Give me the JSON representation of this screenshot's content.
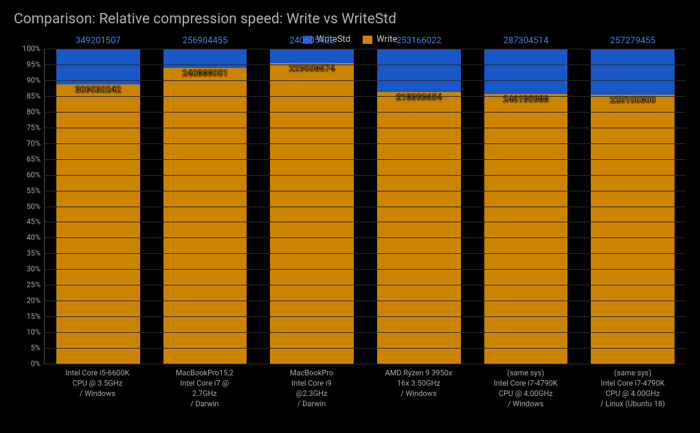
{
  "chart": {
    "type": "stacked-bar-percent",
    "title": "Comparison: Relative compression speed: Write vs WriteStd",
    "background_color": "#000000",
    "grid_color": "#2a2a2a",
    "axis_color": "#555555",
    "title_color": "#b0b0b0",
    "label_color": "#aaaaaa",
    "title_fontsize": 21,
    "label_fontsize": 11,
    "value_fontsize": 13,
    "ylim": [
      0,
      100
    ],
    "ytick_step": 5,
    "bar_width": 0.78,
    "legend": {
      "position": "top-center",
      "items": [
        {
          "label": "WriteStd",
          "color": "#1857c6"
        },
        {
          "label": "Write",
          "color": "#cc8400"
        }
      ]
    },
    "series": {
      "WriteStd": {
        "color": "#1857c6",
        "value_text_color": "#4a80e8"
      },
      "Write": {
        "color": "#cc8400",
        "value_text_color": "#e69a1f"
      }
    },
    "categories": [
      {
        "label": "Intel Core i5-6600K\nCPU @ 3.5GHz\n/ Windows",
        "WriteStd": 349201507,
        "Write": 309530242,
        "write_pct": 88.6
      },
      {
        "label": "MacBookPro15,2\nIntel Core i7 @\n2.7GHz\n/ Darwin",
        "WriteStd": 256904455,
        "Write": 240888051,
        "write_pct": 93.8
      },
      {
        "label": "MacBookPro\nIntel Core i9\n@2.3GHz\n/ Darwin",
        "WriteStd": 240605422,
        "Write": 229558674,
        "write_pct": 95.4
      },
      {
        "label": "AMD Ryzen 9 3950x\n16x 3.50GHz\n/ Windows",
        "WriteStd": 253166022,
        "Write": 218393654,
        "write_pct": 86.3
      },
      {
        "label": "(same sys)\nIntel Core i7-4790K\nCPU @ 4.00GHz\n/ Windows",
        "WriteStd": 287304514,
        "Write": 246195988,
        "write_pct": 85.7
      },
      {
        "label": "(same sys)\nIntel Core i7-4790K\nCPU @ 4.00GHz\n/ Linux (Ubuntu 18)",
        "WriteStd": 257279455,
        "Write": 220100300,
        "write_pct": 85.5
      }
    ],
    "yticks": [
      {
        "v": 0,
        "label": "0%"
      },
      {
        "v": 5,
        "label": "5%"
      },
      {
        "v": 10,
        "label": "10%"
      },
      {
        "v": 15,
        "label": "15%"
      },
      {
        "v": 20,
        "label": "20%"
      },
      {
        "v": 25,
        "label": "25%"
      },
      {
        "v": 30,
        "label": "30%"
      },
      {
        "v": 35,
        "label": "35%"
      },
      {
        "v": 40,
        "label": "40%"
      },
      {
        "v": 45,
        "label": "45%"
      },
      {
        "v": 50,
        "label": "50%"
      },
      {
        "v": 55,
        "label": "55%"
      },
      {
        "v": 60,
        "label": "60%"
      },
      {
        "v": 65,
        "label": "65%"
      },
      {
        "v": 70,
        "label": "70%"
      },
      {
        "v": 75,
        "label": "75%"
      },
      {
        "v": 80,
        "label": "80%"
      },
      {
        "v": 85,
        "label": "85%"
      },
      {
        "v": 90,
        "label": "90%"
      },
      {
        "v": 95,
        "label": "95%"
      },
      {
        "v": 100,
        "label": "100%"
      }
    ]
  }
}
